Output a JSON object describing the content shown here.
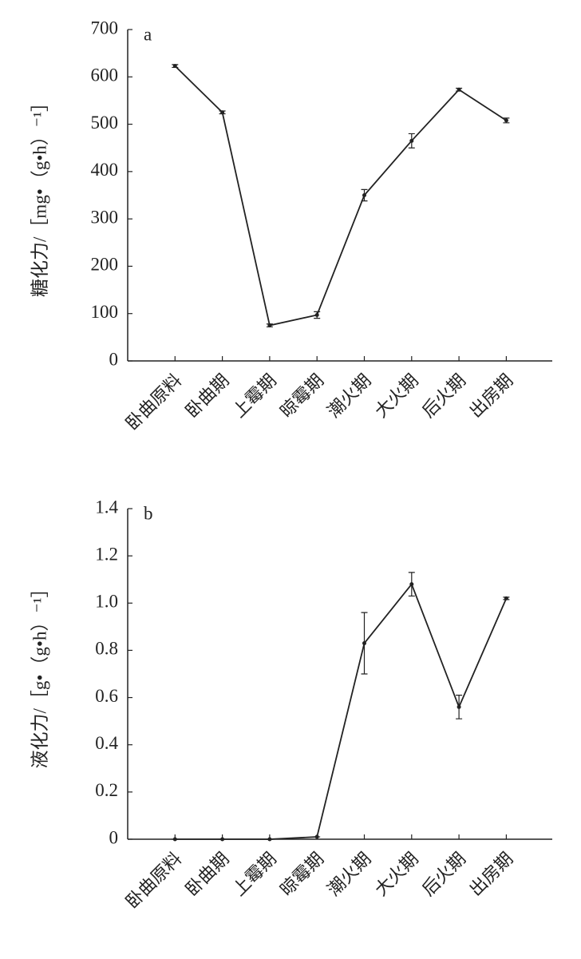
{
  "chart_data": [
    {
      "type": "line",
      "panel": "a",
      "y_label": "糖化力/［mg•（g•h）⁻¹］",
      "categories": [
        "卧曲原料",
        "卧曲期",
        "上霉期",
        "晾霉期",
        "潮火期",
        "大火期",
        "后火期",
        "出房期"
      ],
      "values": [
        623,
        525,
        75,
        97,
        350,
        465,
        573,
        508
      ],
      "errors": [
        3,
        3,
        3,
        7,
        12,
        15,
        3,
        5
      ],
      "color": "#222222",
      "ylim": [
        0,
        700
      ],
      "yticks": [
        0,
        100,
        200,
        300,
        400,
        500,
        600,
        700
      ]
    },
    {
      "type": "line",
      "panel": "b",
      "y_label": "液化力/［g•（g•h）⁻¹］",
      "categories": [
        "卧曲原料",
        "卧曲期",
        "上霉期",
        "晾霉期",
        "潮火期",
        "大火期",
        "后火期",
        "出房期"
      ],
      "values": [
        0,
        0,
        0,
        0.01,
        0.83,
        1.08,
        0.56,
        1.02
      ],
      "errors": [
        0,
        0,
        0,
        0,
        0.13,
        0.05,
        0.05,
        0.005
      ],
      "color": "#222222",
      "ylim": [
        0,
        1.4
      ],
      "yticks": [
        0,
        0.2,
        0.4,
        0.6,
        0.8,
        {
          "value": 1,
          "label": "1.0"
        },
        1.2,
        1.4
      ]
    }
  ]
}
